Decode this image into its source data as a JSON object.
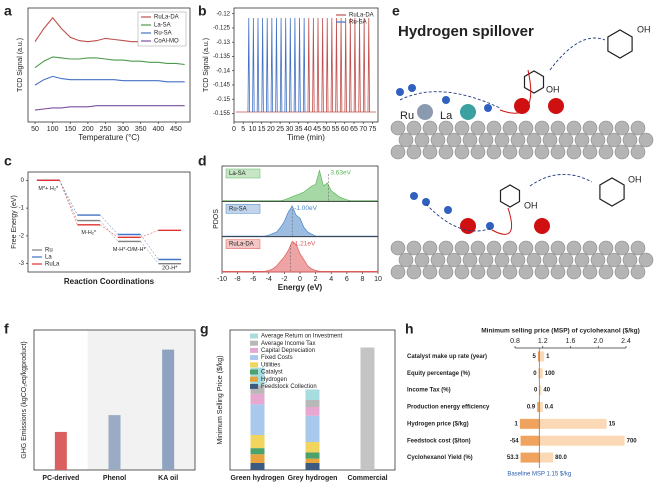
{
  "chart_data": [
    {
      "panel": "a",
      "type": "line",
      "x_label": "Temperature (°C)",
      "y_label": "TCD Signal (a.u.)",
      "x": [
        50,
        75,
        100,
        125,
        150,
        175,
        200,
        225,
        250,
        275,
        300,
        325,
        350,
        375,
        400,
        425,
        450,
        475
      ],
      "xlim": [
        30,
        490
      ],
      "xticks": [
        50,
        100,
        150,
        200,
        250,
        300,
        350,
        400,
        450
      ],
      "ylim": [
        0,
        10.5
      ],
      "legend": "upper right",
      "series": [
        {
          "name": "RuLa-DA",
          "color": "#c0504d",
          "values": [
            7.4,
            8.6,
            9.6,
            8.6,
            7.8,
            7.5,
            7.4,
            7.5,
            7.7,
            7.6,
            7.5,
            7.4,
            7.4,
            7.3,
            7.3,
            7.3,
            7.2,
            7.2
          ]
        },
        {
          "name": "La-SA",
          "color": "#4e9a4e",
          "values": [
            5.0,
            5.6,
            6.0,
            5.9,
            5.8,
            5.8,
            5.9,
            5.9,
            5.8,
            5.7,
            5.7,
            5.6,
            5.6,
            5.5,
            5.5,
            5.4,
            5.4,
            5.3
          ]
        },
        {
          "name": "Ru-SA",
          "color": "#4472c4",
          "values": [
            3.4,
            3.9,
            4.2,
            4.0,
            3.9,
            3.9,
            3.9,
            3.9,
            3.9,
            3.9,
            3.8,
            3.8,
            3.8,
            3.8,
            3.8,
            3.7,
            3.7,
            3.7
          ]
        },
        {
          "name": "CoAl-MO",
          "color": "#7b4fa0",
          "values": [
            1.1,
            1.2,
            1.3,
            1.3,
            1.4,
            1.4,
            1.4,
            1.5,
            1.5,
            1.5,
            1.5,
            1.5,
            1.5,
            1.5,
            1.5,
            1.5,
            1.5,
            1.5
          ]
        }
      ]
    },
    {
      "panel": "b",
      "type": "pulse",
      "x_label": "Time (min)",
      "y_label": "TCD Signal (a.u.)",
      "xlim": [
        0,
        78
      ],
      "xticks": [
        0,
        5,
        10,
        15,
        20,
        25,
        30,
        35,
        40,
        45,
        50,
        55,
        60,
        65,
        70,
        75
      ],
      "ylim": [
        -0.158,
        -0.118
      ],
      "yticks": [
        -0.12,
        -0.125,
        -0.13,
        -0.135,
        -0.14,
        -0.145,
        -0.15,
        -0.155
      ],
      "baseline": -0.1545,
      "legend": "upper right",
      "series": [
        {
          "name": "RuLa-DA",
          "color": "#c0504d",
          "x": [
            40.5,
            43,
            45.5,
            48,
            50.5,
            53,
            55.5,
            58,
            60.5,
            63,
            65.5,
            68,
            70.5,
            73
          ],
          "values": [
            -0.1215,
            -0.1215,
            -0.1215,
            -0.1215,
            -0.1215,
            -0.1215,
            -0.1215,
            -0.1215,
            -0.1215,
            -0.1215,
            -0.1215,
            -0.1215,
            -0.1215,
            -0.1215
          ]
        },
        {
          "name": "Ru-SA",
          "color": "#4472c4",
          "x": [
            8,
            10.5,
            13,
            15.5,
            18,
            20.5,
            23,
            25.5,
            28,
            30.5,
            33,
            35.5,
            38
          ],
          "values": [
            -0.1215,
            -0.1215,
            -0.1215,
            -0.1215,
            -0.1215,
            -0.1215,
            -0.1215,
            -0.1215,
            -0.1215,
            -0.1215,
            -0.1215,
            -0.1215,
            -0.1215
          ]
        }
      ]
    },
    {
      "panel": "c",
      "type": "energy",
      "x_label": "Reaction Coordinations",
      "y_label": "Free Energy (eV)",
      "categories": [
        "M*+ H₂*",
        "M-H₂*",
        "M-H*-O/M-H*",
        "2O-H*"
      ],
      "ylim": [
        -3.3,
        0.3
      ],
      "yticks": [
        0,
        -1,
        -2,
        -3
      ],
      "legend": "lower left",
      "series": [
        {
          "name": "Ru",
          "color": "#808080",
          "values": [
            0,
            -1.45,
            -2.2,
            -3.0
          ]
        },
        {
          "name": "La",
          "color": "#4472c4",
          "values": [
            0,
            -1.25,
            -1.95,
            -2.85
          ]
        },
        {
          "name": "RuLa",
          "color": "#e03030",
          "values": [
            0,
            -1.6,
            -2.05,
            -1.8
          ]
        }
      ]
    },
    {
      "panel": "d",
      "type": "pdos",
      "x_label": "Energy (eV)",
      "y_label": "PDOS",
      "x": [
        -10,
        -9.5,
        -9,
        -8.5,
        -8,
        -7.5,
        -7,
        -6.5,
        -6,
        -5.5,
        -5,
        -4.5,
        -4,
        -3.5,
        -3,
        -2.5,
        -2,
        -1.5,
        -1,
        -0.5,
        0,
        0.5,
        1,
        1.5,
        2,
        2.5,
        3,
        3.5,
        4,
        4.5,
        5,
        5.5,
        6,
        6.5,
        7,
        7.5,
        8,
        8.5,
        9,
        9.5,
        10
      ],
      "xlim": [
        -10,
        10
      ],
      "xticks": [
        -10,
        -8,
        -6,
        -4,
        -2,
        0,
        2,
        4,
        6,
        8,
        10
      ],
      "ylim": [
        0,
        1.15
      ],
      "series": [
        {
          "name": "La-SA",
          "color": "#5cb85c",
          "annotation": "3.63eV",
          "annotation_x": 3.63,
          "values": [
            0.02,
            0.02,
            0.02,
            0.02,
            0.02,
            0.02,
            0.02,
            0.02,
            0.02,
            0.02,
            0.02,
            0.02,
            0.02,
            0.02,
            0.02,
            0.02,
            0.05,
            0.1,
            0.15,
            0.2,
            0.25,
            0.3,
            0.4,
            0.5,
            0.55,
            1.0,
            0.5,
            0.6,
            0.35,
            0.25,
            0.15,
            0.1,
            0.05,
            0.02,
            0.02,
            0.02,
            0.02,
            0.02,
            0.02,
            0.02,
            0.02
          ]
        },
        {
          "name": "Ru-SA",
          "color": "#4a86c8",
          "annotation": "-1.00eV",
          "annotation_x": -1.0,
          "values": [
            0.02,
            0.02,
            0.02,
            0.02,
            0.02,
            0.02,
            0.02,
            0.02,
            0.02,
            0.02,
            0.02,
            0.02,
            0.05,
            0.1,
            0.15,
            0.3,
            0.5,
            0.8,
            1.0,
            0.7,
            0.6,
            0.3,
            0.15,
            0.08,
            0.02,
            0.02,
            0.02,
            0.02,
            0.02,
            0.02,
            0.02,
            0.02,
            0.02,
            0.02,
            0.02,
            0.02,
            0.02,
            0.02,
            0.02,
            0.02,
            0.02
          ]
        },
        {
          "name": "RuLa-DA",
          "color": "#e05a5a",
          "annotation": "-1.21eV",
          "annotation_x": -1.21,
          "values": [
            0.02,
            0.02,
            0.02,
            0.02,
            0.02,
            0.02,
            0.02,
            0.02,
            0.02,
            0.02,
            0.02,
            0.02,
            0.05,
            0.1,
            0.2,
            0.35,
            0.5,
            0.7,
            1.0,
            0.9,
            0.6,
            0.4,
            0.2,
            0.1,
            0.05,
            0.02,
            0.02,
            0.02,
            0.02,
            0.02,
            0.02,
            0.02,
            0.02,
            0.02,
            0.02,
            0.02,
            0.02,
            0.02,
            0.02,
            0.02,
            0.02
          ]
        }
      ]
    },
    {
      "panel": "f",
      "type": "bar",
      "y_label": "GHG Emissions (kgCO₂eq/kgproduct)",
      "categories": [
        "PC-derived",
        "Phenol",
        "KA oil"
      ],
      "values": [
        0.68,
        0.98,
        2.15
      ],
      "colors": [
        "#d9605f",
        "#9aabc4",
        "#8fa3c0"
      ],
      "ylim": [
        0,
        2.5
      ]
    },
    {
      "panel": "g",
      "type": "stacked_bar",
      "y_label": "Minimum Selling Price ($/kg)",
      "categories": [
        "Green hydrogen",
        "Grey hydrogen",
        "Commercial"
      ],
      "ylim": [
        0,
        1.6
      ],
      "reference_values": [
        null,
        null,
        1.4
      ],
      "reference_color": "#c4c4c4",
      "series": [
        {
          "name": "Feedstock Collection",
          "color": "#3d5a80",
          "values": [
            0.08,
            0.08,
            null
          ]
        },
        {
          "name": "Hydrogen",
          "color": "#e8a33d",
          "values": [
            0.1,
            0.05,
            null
          ]
        },
        {
          "name": "Catalyst",
          "color": "#4ba36b",
          "values": [
            0.07,
            0.07,
            null
          ]
        },
        {
          "name": "Utilities",
          "color": "#f2d55f",
          "values": [
            0.15,
            0.12,
            null
          ]
        },
        {
          "name": "Fixed Costs",
          "color": "#a8c8ec",
          "values": [
            0.35,
            0.3,
            null
          ]
        },
        {
          "name": "Capital Depreciation",
          "color": "#e6a8d0",
          "values": [
            0.12,
            0.1,
            null
          ]
        },
        {
          "name": "Average Income Tax",
          "color": "#b8b8b8",
          "values": [
            0.1,
            0.08,
            null
          ]
        },
        {
          "name": "Average Return on Investment",
          "color": "#a8dde0",
          "values": [
            0.2,
            0.12,
            null
          ]
        }
      ]
    },
    {
      "panel": "h",
      "type": "tornado",
      "x_label": "Minimum selling price (MSP) of cyclohexanol ($/kg)",
      "xlim": [
        0.8,
        2.4
      ],
      "xticks": [
        0.8,
        1.2,
        1.6,
        {
          "value": 2,
          "label": "2.0"
        },
        2.4
      ],
      "baseline": 1.15,
      "baseline_label": "Baseline MSP 1.15 $/kg",
      "low_color": "#f0a35e",
      "high_color": "#fcd9b6",
      "categories": [
        "Catalyst make up rate (year)",
        "Equity percentage (%)",
        "Income Tax (%)",
        "Production energy efficiency",
        "Hydrogen price ($/kg)",
        "Feedstock cost ($/ton)",
        "Cyclohexanol Yield (%)"
      ],
      "low": [
        1.13,
        1.14,
        1.15,
        1.12,
        0.87,
        0.88,
        0.88
      ],
      "high": [
        1.22,
        1.2,
        1.18,
        1.2,
        2.12,
        2.38,
        1.35
      ],
      "low_labels": [
        "5",
        "0",
        "0",
        "0.9",
        "1",
        "-54",
        "53.3"
      ],
      "high_labels": [
        "1",
        "100",
        "40",
        "0.4",
        "15",
        "700",
        "80.0"
      ]
    }
  ],
  "diagram": {
    "panel": "e",
    "title": "Hydrogen spillover",
    "top": {
      "labels": [
        "Ru",
        "La",
        "OH",
        "OH"
      ]
    },
    "bottom": {
      "labels": [
        "OH",
        "OH"
      ]
    }
  }
}
